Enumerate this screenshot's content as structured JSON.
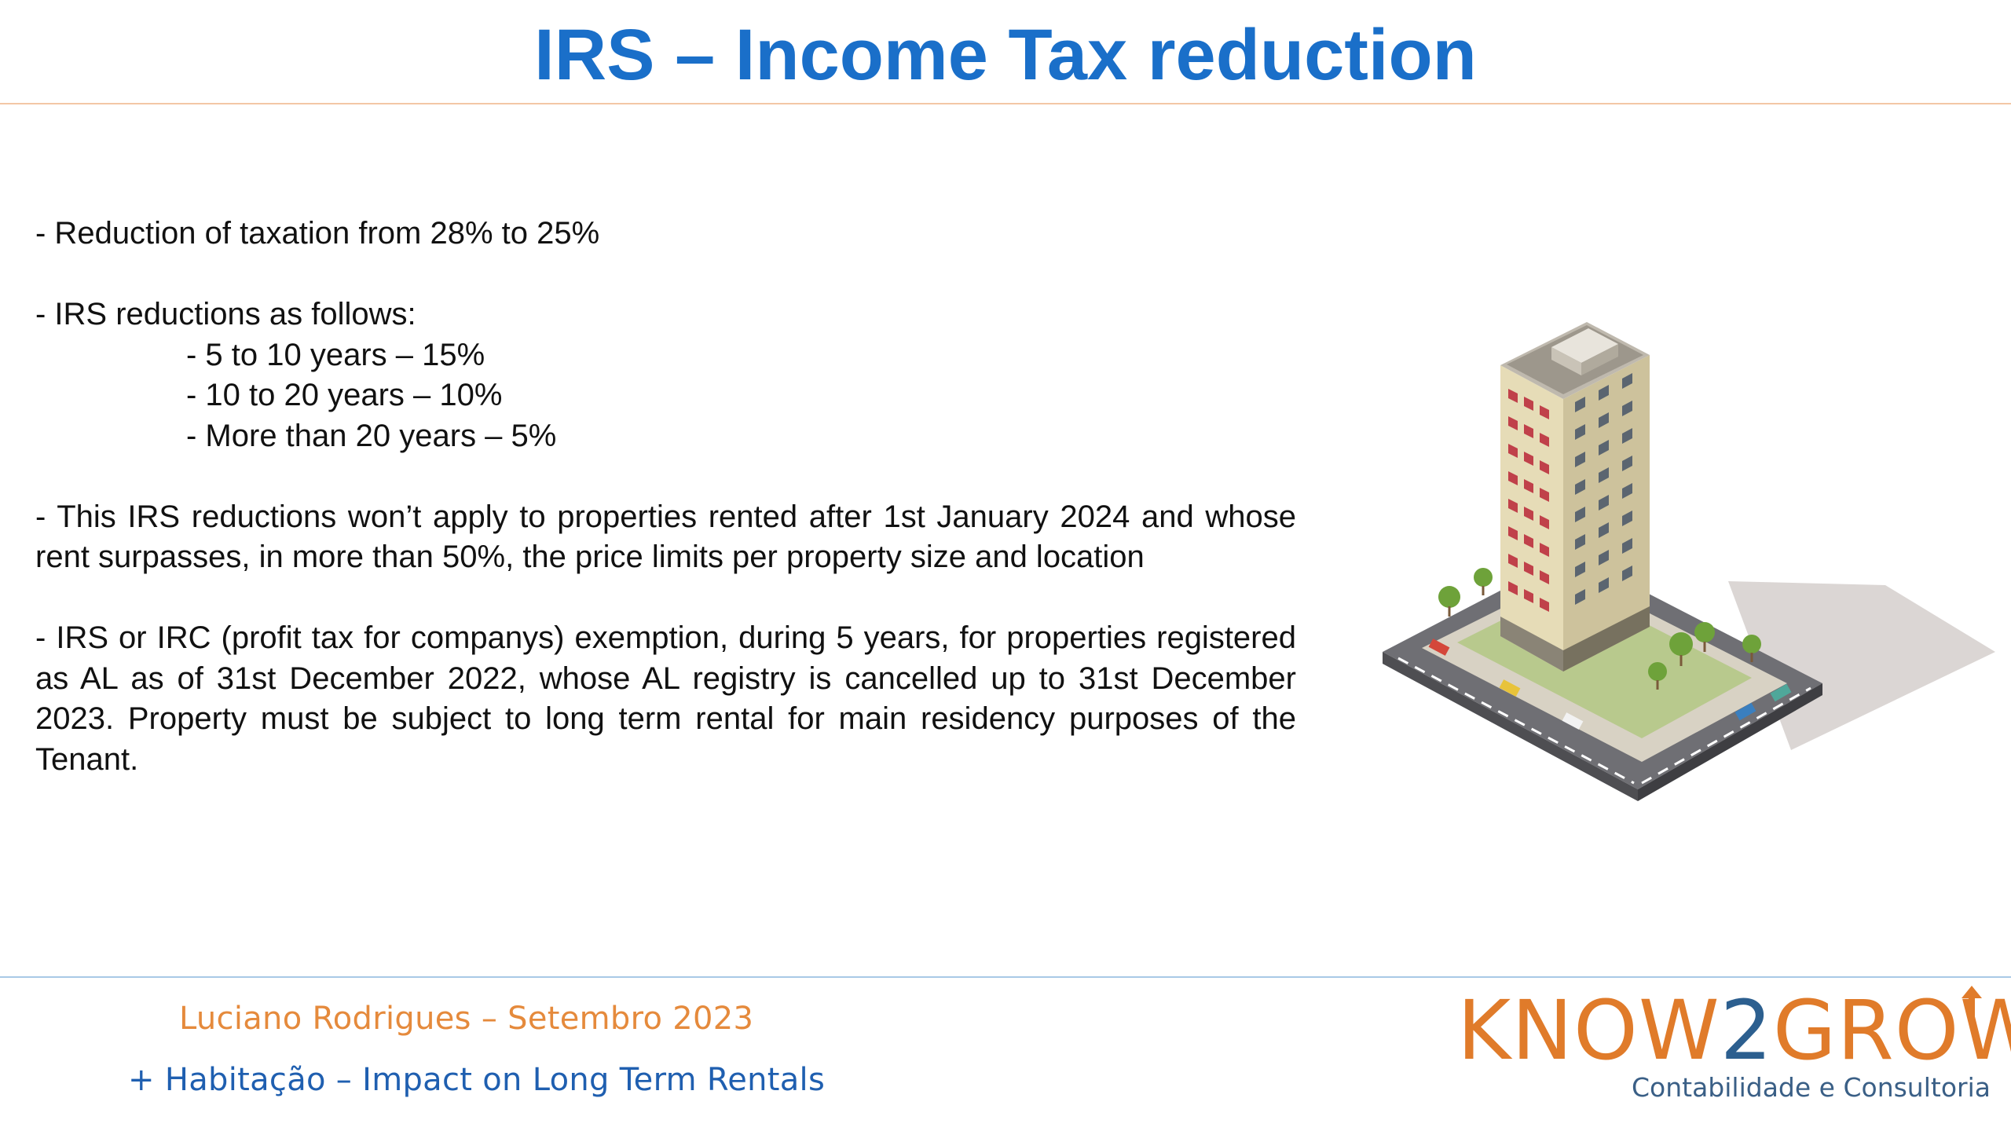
{
  "slide": {
    "title": "IRS – Income Tax reduction",
    "bullets": {
      "reduction": "- Reduction of taxation from 28% to 25%",
      "irs_intro": "- IRS reductions as follows:",
      "tiers": [
        "- 5 to 10 years – 15%",
        "- 10 to 20 years – 10%",
        "- More than 20 years – 5%"
      ],
      "not_apply": "- This IRS reductions won’t apply to properties rented after 1st January 2024 and whose rent surpasses, in more than 50%, the price limits per property size and location",
      "exemption": "- IRS or IRC (profit tax for companys) exemption, during 5 years, for properties registered as AL as of 31st December 2022, whose AL registry is cancelled up to 31st December 2023. Property must be subject to long term rental for main residency purposes of the Tenant."
    },
    "illustration": "isometric-apartment-building"
  },
  "footer": {
    "author": "Luciano Rodrigues – Setembro 2023",
    "subtitle": "+ Habitação – Impact on Long Term Rentals"
  },
  "logo": {
    "word_part1": "KNOW",
    "word_part2": "2",
    "word_part3": "GROW",
    "tagline": "Contabilidade e Consultoria"
  },
  "colors": {
    "title": "#1a6fc9",
    "author": "#e58a3c",
    "subtitle": "#1f5fb0",
    "logo_blue": "#2c5f8f",
    "logo_orange": "#e07b2a"
  }
}
